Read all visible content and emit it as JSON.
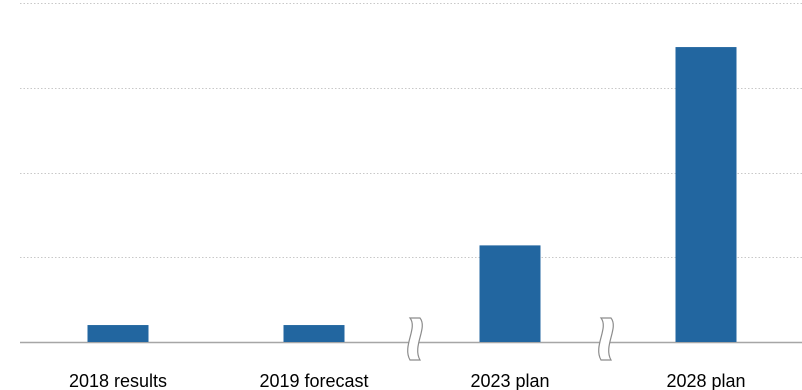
{
  "chart_data": {
    "type": "bar",
    "title": "",
    "categories": [
      "2018 results",
      "2019 forecast",
      "2023 plan",
      "2028 plan"
    ],
    "values": [
      1,
      1,
      5.7,
      17.4
    ],
    "ylim": [
      0,
      20
    ],
    "grid": true,
    "axis_breaks_after": [
      "2019 forecast",
      "2023 plan"
    ],
    "colors": {
      "bar": "#2266a0",
      "grid": "#c8c8c8",
      "axis": "#a6a6a6",
      "break_mark": "#8c8c8c"
    }
  }
}
